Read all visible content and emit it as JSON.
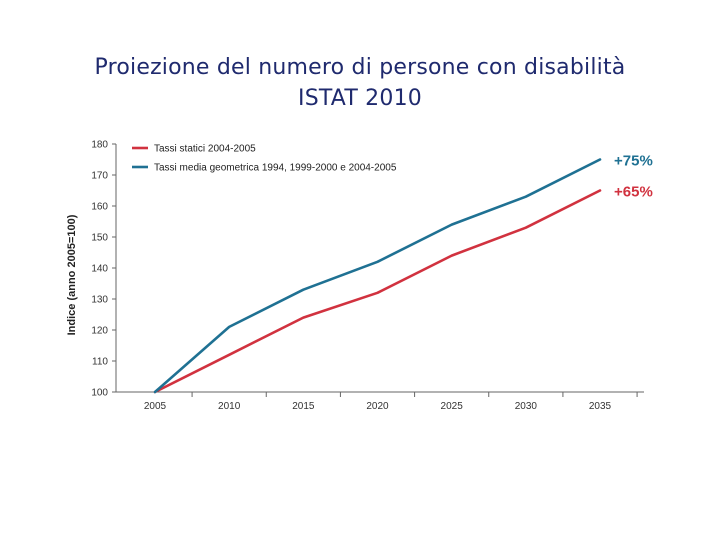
{
  "slide": {
    "title_line1": "Proiezione del numero di persone con disabilità",
    "title_line2": "ISTAT 2010"
  },
  "chart_data": {
    "type": "line",
    "title": "Proiezione del numero di persone con disabilità ISTAT 2010",
    "xlabel": "",
    "ylabel": "Indice (anno 2005=100)",
    "x": [
      2005,
      2010,
      2015,
      2020,
      2025,
      2030,
      2035
    ],
    "x_tick_labels": [
      "2005",
      "2010",
      "2015",
      "2020",
      "2025",
      "2030",
      "2035"
    ],
    "ylim": [
      100,
      180
    ],
    "y_ticks": [
      100,
      110,
      120,
      130,
      140,
      150,
      160,
      170,
      180
    ],
    "grid": false,
    "legend_position": "top-left",
    "series": [
      {
        "name": "Tassi statici 2004-2005",
        "color": "#d1323f",
        "values": [
          100,
          112,
          124,
          132,
          144,
          153,
          165
        ],
        "end_label": "+65%"
      },
      {
        "name": "Tassi media geometrica 1994, 1999-2000 e 2004-2005",
        "color": "#1f7193",
        "values": [
          100,
          121,
          133,
          142,
          154,
          163,
          175
        ],
        "end_label": "+75%"
      }
    ]
  }
}
